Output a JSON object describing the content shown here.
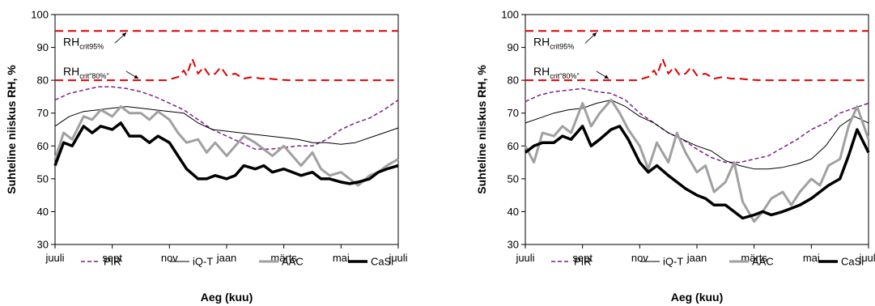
{
  "chart_data": [
    {
      "type": "line",
      "xlabel": "Aeg (kuu)",
      "ylabel": "Suhteline niiskus RH, %",
      "x_ticks": [
        "juuli",
        "sept",
        "nov",
        "jaan",
        "märts",
        "mai",
        "juuli"
      ],
      "x_range_months": [
        0,
        12
      ],
      "ylim": [
        30,
        100
      ],
      "y_ticks": [
        30,
        40,
        50,
        60,
        70,
        80,
        90,
        100
      ],
      "grid": false,
      "legend_position": "bottom",
      "annotations": [
        {
          "base": "RH",
          "sub": "crit95%",
          "y": 95
        },
        {
          "base": "RH",
          "sub": "crit\"80%\"",
          "y": 80
        }
      ],
      "series": [
        {
          "name": "RHcrit95%",
          "x": [
            0,
            12
          ],
          "values": [
            95,
            95
          ]
        },
        {
          "name": "RHcrit80%",
          "x": [
            0,
            3.9,
            4.1,
            4.3,
            4.5,
            4.6,
            4.7,
            4.8,
            5.0,
            5.2,
            5.4,
            5.6,
            5.8,
            6.0,
            6.3,
            6.6,
            6.9,
            7.2,
            7.5,
            7.8,
            8.2,
            8.6,
            12
          ],
          "values": [
            80,
            80,
            80.5,
            81,
            83,
            81.5,
            84,
            86.5,
            82,
            84,
            81.5,
            82,
            84,
            81.5,
            82,
            80.5,
            81,
            80.5,
            80.5,
            80.2,
            80,
            80,
            80
          ]
        },
        {
          "name": "PIR",
          "x": [
            0,
            0.5,
            1,
            1.5,
            2,
            2.5,
            3,
            3.5,
            4,
            4.5,
            5,
            5.5,
            6,
            6.5,
            7,
            7.5,
            8,
            8.5,
            9,
            9.5,
            10,
            10.5,
            11,
            11.5,
            12
          ],
          "values": [
            74,
            76,
            77,
            78,
            78,
            77.5,
            76.5,
            75,
            73,
            71,
            68,
            65,
            63,
            61,
            59,
            59,
            59.5,
            60,
            60,
            62,
            65,
            67,
            68.5,
            71,
            74
          ]
        },
        {
          "name": "iQ-T",
          "x": [
            0,
            0.5,
            1,
            1.5,
            2,
            2.5,
            3,
            3.5,
            4,
            4.5,
            5,
            5.5,
            6,
            6.5,
            7,
            7.5,
            8,
            8.5,
            9,
            9.5,
            10,
            10.5,
            11,
            11.5,
            12
          ],
          "values": [
            66,
            69,
            70.5,
            71,
            71.5,
            72,
            71.5,
            71,
            70.5,
            70,
            67,
            65,
            64.5,
            64,
            63.5,
            63,
            62.5,
            62,
            61,
            61,
            60.5,
            61,
            62.5,
            64,
            65.5
          ]
        },
        {
          "name": "AAC",
          "x": [
            0,
            0.3,
            0.6,
            1,
            1.3,
            1.6,
            2,
            2.3,
            2.6,
            3,
            3.3,
            3.6,
            4,
            4.3,
            4.6,
            5,
            5.3,
            5.6,
            6,
            6.3,
            6.6,
            7,
            7.3,
            7.6,
            8,
            8.3,
            8.6,
            9,
            9.3,
            9.6,
            10,
            10.3,
            10.6,
            11,
            11.3,
            11.6,
            12
          ],
          "values": [
            56,
            64,
            62,
            69,
            68,
            71,
            69,
            72,
            70,
            70,
            68,
            70.5,
            68,
            64,
            61,
            62,
            58,
            61,
            57,
            60,
            63,
            61,
            59,
            57,
            60,
            57,
            54,
            58,
            53,
            51,
            52,
            50,
            48,
            51,
            52,
            54,
            56
          ]
        },
        {
          "name": "CaSi",
          "x": [
            0,
            0.3,
            0.6,
            1,
            1.3,
            1.6,
            2,
            2.3,
            2.6,
            3,
            3.3,
            3.6,
            4,
            4.3,
            4.6,
            5,
            5.3,
            5.6,
            6,
            6.3,
            6.6,
            7,
            7.3,
            7.6,
            8,
            8.3,
            8.6,
            9,
            9.3,
            9.6,
            10,
            10.3,
            10.6,
            11,
            11.3,
            11.6,
            12
          ],
          "values": [
            54,
            61,
            60,
            66,
            64,
            66,
            65,
            67,
            63,
            63,
            61,
            63,
            61,
            57,
            53,
            50,
            50,
            51,
            50,
            51,
            54,
            53,
            54,
            52,
            53,
            52,
            51,
            52,
            50,
            50,
            49,
            48.5,
            49,
            50,
            52,
            53,
            54
          ]
        }
      ]
    },
    {
      "type": "line",
      "xlabel": "Aeg (kuu)",
      "ylabel": "Suhteline niiskus RH, %",
      "x_ticks": [
        "juuli",
        "sept",
        "nov",
        "jaan",
        "märts",
        "mai",
        "juuli"
      ],
      "x_range_months": [
        0,
        12
      ],
      "ylim": [
        30,
        100
      ],
      "y_ticks": [
        30,
        40,
        50,
        60,
        70,
        80,
        90,
        100
      ],
      "grid": false,
      "legend_position": "bottom",
      "annotations": [
        {
          "base": "RH",
          "sub": "crit95%",
          "y": 95
        },
        {
          "base": "RH",
          "sub": "crit\"80%\"",
          "y": 80
        }
      ],
      "series": [
        {
          "name": "RHcrit95%",
          "x": [
            0,
            12
          ],
          "values": [
            95,
            95
          ]
        },
        {
          "name": "RHcrit80%",
          "x": [
            0,
            3.9,
            4.1,
            4.3,
            4.5,
            4.6,
            4.7,
            4.8,
            5.0,
            5.2,
            5.4,
            5.6,
            5.8,
            6.0,
            6.3,
            6.6,
            6.9,
            7.2,
            7.5,
            7.8,
            8.2,
            8.6,
            12
          ],
          "values": [
            80,
            80,
            80.5,
            81,
            83,
            81.5,
            84,
            86.5,
            82,
            84,
            81.5,
            82,
            84,
            81.5,
            82,
            80.5,
            81,
            80.5,
            80.5,
            80.2,
            80,
            80,
            80
          ]
        },
        {
          "name": "PIR",
          "x": [
            0,
            0.5,
            1,
            1.5,
            2,
            2.5,
            3,
            3.5,
            4,
            4.5,
            5,
            5.5,
            6,
            6.5,
            7,
            7.5,
            8,
            8.5,
            9,
            9.5,
            10,
            10.5,
            11,
            11.5,
            12
          ],
          "values": [
            73.5,
            75.5,
            76.5,
            77,
            77.5,
            76.5,
            76,
            74,
            70,
            67,
            64,
            62,
            59,
            56.5,
            55,
            55,
            56,
            57,
            59.5,
            62,
            65,
            67,
            70,
            71.5,
            73
          ]
        },
        {
          "name": "iQ-T",
          "x": [
            0,
            0.5,
            1,
            1.5,
            2,
            2.5,
            3,
            3.5,
            4,
            4.5,
            5,
            5.5,
            6,
            6.5,
            7,
            7.5,
            8,
            8.5,
            9,
            9.5,
            10,
            10.5,
            11,
            11.5,
            12
          ],
          "values": [
            67,
            68.5,
            70,
            71,
            71.5,
            73,
            74,
            72,
            69,
            67,
            64,
            62,
            60,
            58.5,
            55.5,
            54,
            53,
            53,
            53.5,
            54.5,
            56,
            60,
            66,
            69,
            67
          ]
        },
        {
          "name": "AAC",
          "x": [
            0,
            0.3,
            0.6,
            1,
            1.3,
            1.6,
            2,
            2.3,
            2.6,
            3,
            3.3,
            3.6,
            4,
            4.3,
            4.6,
            5,
            5.3,
            5.6,
            6,
            6.3,
            6.6,
            7,
            7.3,
            7.6,
            8,
            8.3,
            8.6,
            9,
            9.3,
            9.6,
            10,
            10.3,
            10.6,
            11,
            11.3,
            11.6,
            12
          ],
          "values": [
            60,
            55,
            64,
            63,
            66,
            64,
            73,
            66,
            70,
            74,
            70,
            65,
            60,
            53,
            61,
            55,
            64,
            58,
            52,
            54,
            46,
            49,
            55,
            43,
            37,
            40,
            44,
            46,
            42,
            46,
            50,
            48,
            54,
            56,
            66,
            72,
            62
          ]
        },
        {
          "name": "CaSi",
          "x": [
            0,
            0.3,
            0.6,
            1,
            1.3,
            1.6,
            2,
            2.3,
            2.6,
            3,
            3.3,
            3.6,
            4,
            4.3,
            4.6,
            5,
            5.3,
            5.6,
            6,
            6.3,
            6.6,
            7,
            7.3,
            7.6,
            8,
            8.3,
            8.6,
            9,
            9.3,
            9.6,
            10,
            10.3,
            10.6,
            11,
            11.3,
            11.6,
            12
          ],
          "values": [
            58,
            60,
            61,
            61,
            63,
            62,
            66,
            60,
            62,
            65,
            66,
            62,
            55,
            52,
            54,
            51,
            49,
            47,
            45,
            44,
            42,
            42,
            40,
            38,
            39,
            40,
            39,
            40,
            41,
            42,
            44,
            46,
            48,
            50,
            57,
            65,
            58
          ]
        }
      ]
    }
  ],
  "legend": {
    "items": [
      {
        "label": "PIR",
        "color": "#7B1F86",
        "dash": "5,3",
        "width": 1.5
      },
      {
        "label": "iQ-T",
        "color": "#000000",
        "dash": "",
        "width": 1
      },
      {
        "label": "AAC",
        "color": "#A0A0A0",
        "dash": "",
        "width": 3
      },
      {
        "label": "CaSi",
        "color": "#000000",
        "dash": "",
        "width": 3.5
      }
    ]
  },
  "colors": {
    "crit": "#E00000",
    "PIR": "#7B1F86",
    "iQ-T": "#000000",
    "AAC": "#A0A0A0",
    "CaSi": "#000000"
  }
}
